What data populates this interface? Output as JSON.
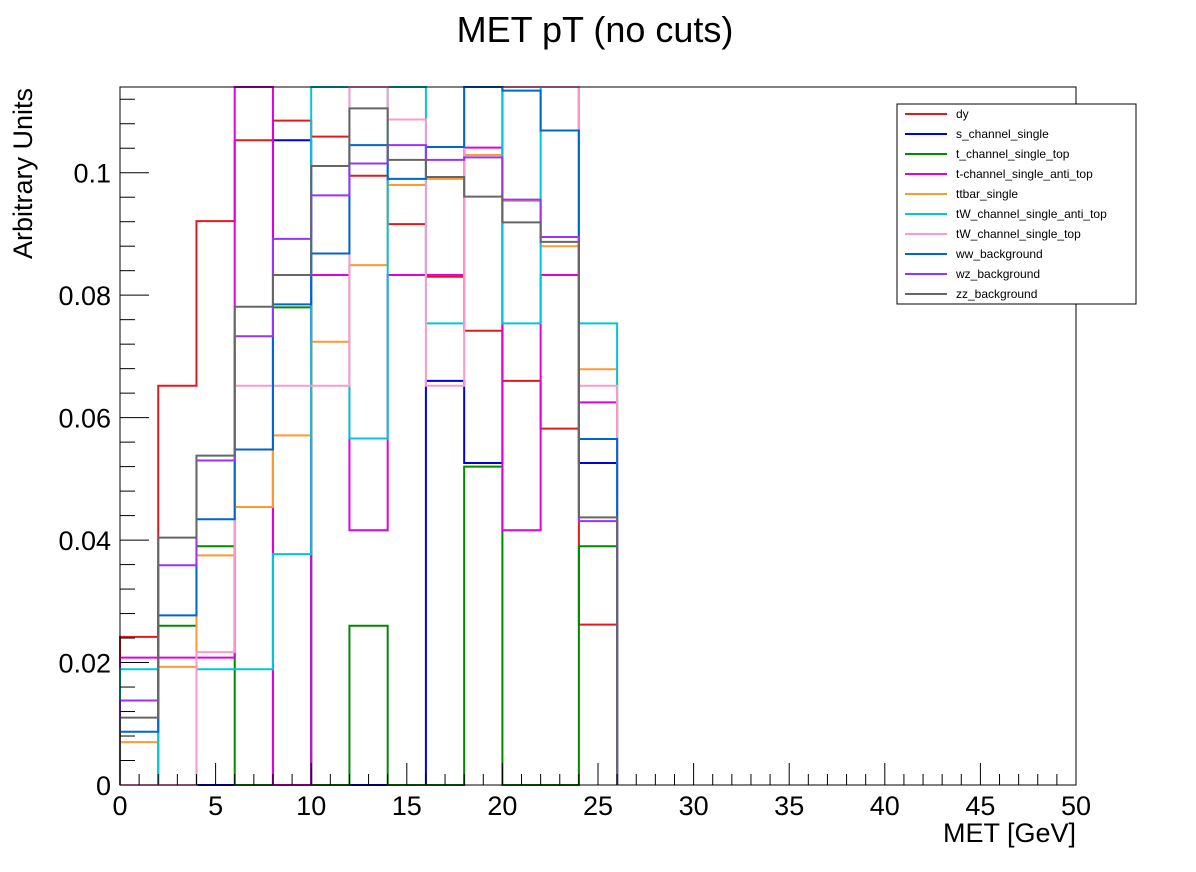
{
  "chart_data": {
    "type": "histogram-step",
    "title": "MET pT (no cuts)",
    "xlabel": "MET [GeV]",
    "ylabel": "Arbitrary Units",
    "xlim": [
      0,
      50
    ],
    "ylim": [
      0,
      0.114
    ],
    "xticks": [
      0,
      5,
      10,
      15,
      20,
      25,
      30,
      35,
      40,
      45,
      50
    ],
    "xtick_labels": [
      "0",
      "5",
      "10",
      "15",
      "20",
      "25",
      "30",
      "35",
      "40",
      "45",
      "50"
    ],
    "yticks": [
      0,
      0.02,
      0.04,
      0.06,
      0.08,
      0.1
    ],
    "ytick_labels": [
      "0",
      "0.02",
      "0.04",
      "0.06",
      "0.08",
      "0.1"
    ],
    "bin_edges": [
      0,
      2,
      4,
      6,
      8,
      10,
      12,
      14,
      16,
      18,
      20,
      22,
      24,
      26
    ],
    "grid": false,
    "legend_position": "top-right",
    "series": [
      {
        "name": "dy",
        "color": "#e31a1c",
        "values": [
          0.0242,
          0.0652,
          0.0921,
          0.1053,
          0.1085,
          0.1059,
          0.0995,
          0.0916,
          0.083,
          0.0742,
          0.066,
          0.0582,
          0.0262
        ]
      },
      {
        "name": "s_channel_single",
        "color": "#0000e0",
        "values": [
          0,
          0,
          0,
          0,
          0.1053,
          0,
          0,
          0,
          0.066,
          0.0526,
          0.114,
          0.114,
          0.0526
        ]
      },
      {
        "name": "t_channel_single_top",
        "color": "#008a00",
        "values": [
          0,
          0.026,
          0.039,
          0,
          0.078,
          0,
          0.026,
          0,
          0,
          0.052,
          0,
          0,
          0.039
        ]
      },
      {
        "name": "t-channel_single_anti_top",
        "color": "#e000e0",
        "values": [
          0.0208,
          0.0208,
          0.0208,
          0.114,
          0,
          0.0833,
          0.0416,
          0.0833,
          0.0833,
          0.1041,
          0.0416,
          0.0833,
          0.0625
        ]
      },
      {
        "name": "ttbar_single",
        "color": "#ff9933",
        "values": [
          0.007,
          0.0193,
          0.0375,
          0.0454,
          0.0571,
          0.0724,
          0.0849,
          0.098,
          0.099,
          0.1029,
          0.0954,
          0.088,
          0.0679
        ]
      },
      {
        "name": "tW_channel_single_anti_top",
        "color": "#00c8d2",
        "values": [
          0.0189,
          0,
          0.0189,
          0.0189,
          0.0377,
          0.114,
          0.0566,
          0.114,
          0.0754,
          0.114,
          0.0754,
          0.114,
          0.0754
        ]
      },
      {
        "name": "tW_channel_single_top",
        "color": "#ff99cc",
        "values": [
          0,
          0,
          0.0217,
          0.0652,
          0.0652,
          0.0652,
          0.114,
          0.1087,
          0.0652,
          0.114,
          0.114,
          0.114,
          0.0652
        ]
      },
      {
        "name": "ww_background",
        "color": "#0066cc",
        "values": [
          0.0087,
          0.0277,
          0.0434,
          0.0548,
          0.0785,
          0.0868,
          0.1045,
          0.099,
          0.1042,
          0.114,
          0.1134,
          0.1069,
          0.0565
        ]
      },
      {
        "name": "wz_background",
        "color": "#9933ff",
        "values": [
          0.0138,
          0.0359,
          0.053,
          0.0733,
          0.0892,
          0.0963,
          0.1015,
          0.1045,
          0.1021,
          0.1025,
          0.0956,
          0.0895,
          0.0431
        ]
      },
      {
        "name": "zz_background",
        "color": "#666666",
        "values": [
          0.011,
          0.0404,
          0.0538,
          0.0781,
          0.0833,
          0.1011,
          0.1105,
          0.1021,
          0.0993,
          0.0961,
          0.0919,
          0.0887,
          0.0437
        ]
      }
    ]
  }
}
